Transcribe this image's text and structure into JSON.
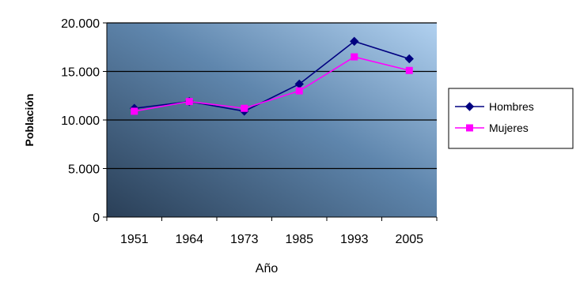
{
  "chart_data": {
    "type": "line",
    "title": "",
    "xlabel": "Año",
    "ylabel": "Población",
    "categories": [
      "1951",
      "1964",
      "1973",
      "1985",
      "1993",
      "2005"
    ],
    "ylim": [
      0,
      20000
    ],
    "yticks": [
      0,
      5000,
      10000,
      15000,
      20000
    ],
    "ytick_labels": [
      "0",
      "5.000",
      "10.000",
      "15.000",
      "20.000"
    ],
    "grid": true,
    "legend_position": "right",
    "series": [
      {
        "name": "Hombres",
        "values": [
          11200,
          11900,
          10900,
          13700,
          18100,
          16300
        ],
        "color": "#000080",
        "marker": "diamond"
      },
      {
        "name": "Mujeres",
        "values": [
          10900,
          11900,
          11200,
          13000,
          16500,
          15100
        ],
        "color": "#FF00FF",
        "marker": "square"
      }
    ]
  }
}
